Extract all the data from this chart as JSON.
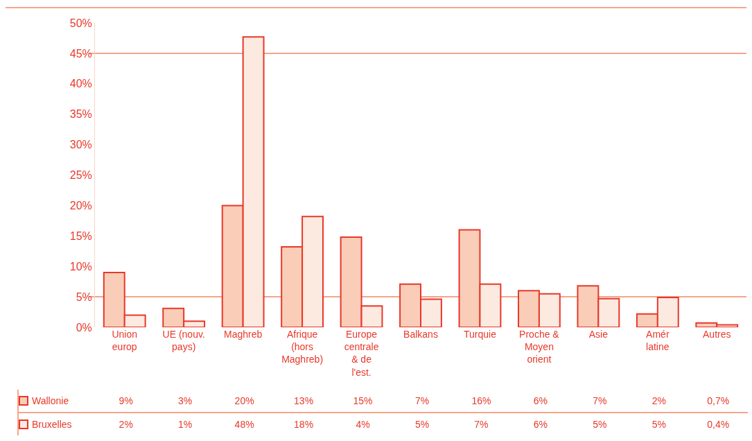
{
  "chart_data": {
    "type": "bar",
    "categories": [
      "Union europ",
      "UE (nouv. pays)",
      "Maghreb",
      "Afrique (hors Maghreb)",
      "Europe centrale & de l'est.",
      "Balkans",
      "Turquie",
      "Proche & Moyen orient",
      "Asie",
      "Amér latine",
      "Autres"
    ],
    "series": [
      {
        "name": "Wallonie",
        "color": "#f9cdb8",
        "values": [
          9.0,
          3.1,
          20.0,
          13.2,
          14.8,
          7.1,
          16.0,
          6.0,
          6.8,
          2.2,
          0.7
        ],
        "value_labels": [
          "9%",
          "3%",
          "20%",
          "13%",
          "15%",
          "7%",
          "16%",
          "6%",
          "7%",
          "2%",
          "0,7%"
        ]
      },
      {
        "name": "Bruxelles",
        "color": "#fce9e0",
        "values": [
          2.0,
          1.0,
          47.7,
          18.2,
          3.5,
          4.6,
          7.1,
          5.5,
          4.7,
          4.9,
          0.4
        ],
        "value_labels": [
          "2%",
          "1%",
          "48%",
          "18%",
          "4%",
          "5%",
          "7%",
          "6%",
          "5%",
          "5%",
          "0,4%"
        ]
      }
    ],
    "ylim": [
      0,
      50
    ],
    "yticks": [
      {
        "value": 0,
        "label": "0%"
      },
      {
        "value": 5,
        "label": "5%"
      },
      {
        "value": 10,
        "label": "10%"
      },
      {
        "value": 15,
        "label": "15%"
      },
      {
        "value": 20,
        "label": "20%"
      },
      {
        "value": 25,
        "label": "25%"
      },
      {
        "value": 30,
        "label": "30%"
      },
      {
        "value": 35,
        "label": "35%"
      },
      {
        "value": 40,
        "label": "40%"
      },
      {
        "value": 45,
        "label": "45%"
      },
      {
        "value": 50,
        "label": "50%"
      }
    ],
    "ref_lines": [
      {
        "axis": "y",
        "value": 5,
        "color": "#f4a58a"
      },
      {
        "axis": "y",
        "value": 45,
        "color": "#f4a58a"
      }
    ],
    "grid": false,
    "legend": "bottom left"
  }
}
